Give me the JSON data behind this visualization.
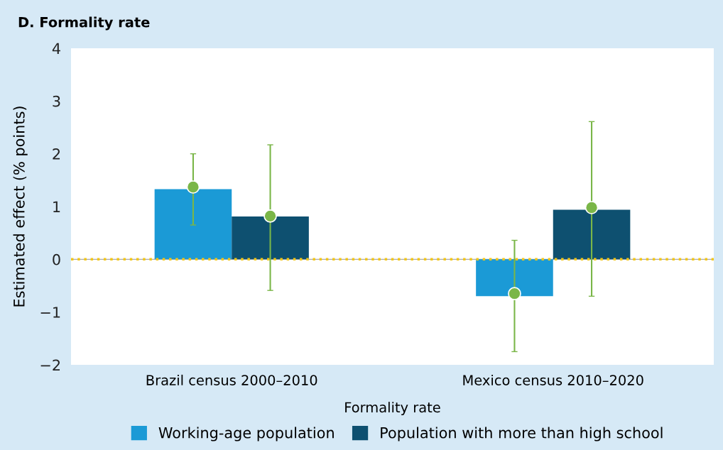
{
  "chart_data": {
    "type": "bar",
    "title": "D. Formality rate",
    "xlabel": "Formality rate",
    "ylabel": "Estimated effect (% points)",
    "categories": [
      "Brazil census 2000–2010",
      "Mexico census 2010–2020"
    ],
    "series": [
      {
        "name": "Working-age population",
        "color": "#1b9ad6",
        "values": [
          1.33,
          -0.7
        ]
      },
      {
        "name": "Population with more than high school",
        "color": "#0e5070",
        "values": [
          0.81,
          0.94
        ]
      },
      {
        "type": "scatter",
        "color": "#7ab648",
        "x": [
          "Brazil census 2000–2010",
          "Mexico census 2010–2020"
        ],
        "values": [
          1.37,
          -0.65
        ],
        "errors": [
          [
            0.65,
            2.0
          ],
          [
            -1.75,
            0.36
          ]
        ]
      },
      {
        "type": "scatter",
        "color": "#7ab648",
        "x": [
          "Brazil census 2000–2010",
          "Mexico census 2010–2020"
        ],
        "values": [
          0.82,
          0.98
        ],
        "errors": [
          [
            -0.59,
            2.17
          ],
          [
            -0.7,
            2.61
          ]
        ]
      }
    ],
    "ylim": [
      -2,
      4
    ],
    "yticks": [
      {
        "value": -2,
        "label": "−2"
      },
      {
        "value": -1,
        "label": "−1"
      },
      0,
      1,
      2,
      3,
      4
    ],
    "ref_lines": [
      {
        "axis": "y",
        "value": 0,
        "color": "#f2c619",
        "line_style": "dotted"
      }
    ],
    "marker": "circle",
    "legend": "bottom",
    "grid": false
  }
}
